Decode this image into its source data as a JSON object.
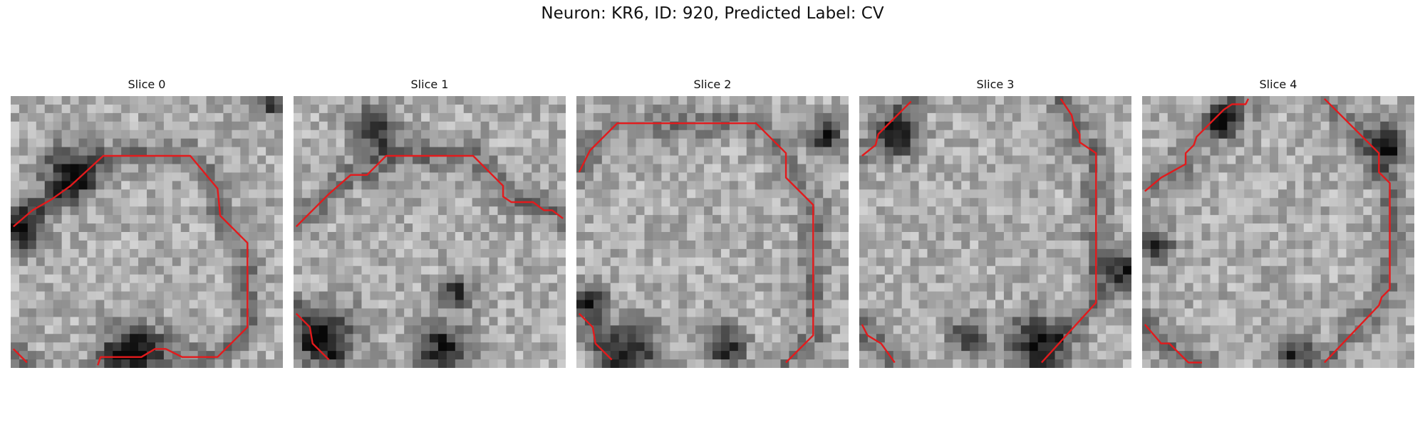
{
  "figure": {
    "title": "Neuron: KR6, ID: 920, Predicted Label: CV"
  },
  "panels": [
    {
      "title": "Slice 0",
      "seed": 11,
      "contour_color": "#e31a1c",
      "contours": [
        [
          [
            0.01,
            0.48
          ],
          [
            0.08,
            0.42
          ],
          [
            0.15,
            0.38
          ],
          [
            0.22,
            0.33
          ],
          [
            0.34,
            0.22
          ],
          [
            0.66,
            0.22
          ],
          [
            0.76,
            0.34
          ],
          [
            0.77,
            0.44
          ],
          [
            0.87,
            0.54
          ],
          [
            0.87,
            0.85
          ],
          [
            0.76,
            0.96
          ],
          [
            0.63,
            0.96
          ],
          [
            0.57,
            0.93
          ],
          [
            0.53,
            0.93
          ],
          [
            0.48,
            0.96
          ],
          [
            0.33,
            0.96
          ],
          [
            0.32,
            0.99
          ]
        ],
        [
          [
            0.01,
            0.93
          ],
          [
            0.06,
            0.98
          ]
        ]
      ],
      "dark_features": [
        [
          0.22,
          0.28,
          0.1
        ],
        [
          0.05,
          0.5,
          0.08
        ],
        [
          0.45,
          0.93,
          0.1
        ],
        [
          0.95,
          0.02,
          0.05
        ]
      ]
    },
    {
      "title": "Slice 1",
      "seed": 23,
      "contour_color": "#e31a1c",
      "contours": [
        [
          [
            0.01,
            0.48
          ],
          [
            0.13,
            0.36
          ],
          [
            0.21,
            0.29
          ],
          [
            0.27,
            0.29
          ],
          [
            0.34,
            0.22
          ],
          [
            0.66,
            0.22
          ],
          [
            0.77,
            0.33
          ],
          [
            0.77,
            0.37
          ],
          [
            0.8,
            0.39
          ],
          [
            0.88,
            0.39
          ],
          [
            0.92,
            0.42
          ],
          [
            0.95,
            0.42
          ],
          [
            0.99,
            0.45
          ]
        ],
        [
          [
            0.01,
            0.8
          ],
          [
            0.06,
            0.85
          ],
          [
            0.07,
            0.91
          ],
          [
            0.13,
            0.97
          ]
        ]
      ],
      "dark_features": [
        [
          0.12,
          0.88,
          0.11
        ],
        [
          0.55,
          0.93,
          0.1
        ],
        [
          0.3,
          0.12,
          0.08
        ],
        [
          0.6,
          0.72,
          0.05
        ]
      ]
    },
    {
      "title": "Slice 2",
      "seed": 37,
      "contour_color": "#e31a1c",
      "contours": [
        [
          [
            0.01,
            0.28
          ],
          [
            0.05,
            0.2
          ],
          [
            0.15,
            0.1
          ],
          [
            0.66,
            0.1
          ],
          [
            0.77,
            0.21
          ],
          [
            0.77,
            0.3
          ],
          [
            0.87,
            0.4
          ],
          [
            0.87,
            0.88
          ],
          [
            0.77,
            0.98
          ]
        ],
        [
          [
            0.01,
            0.8
          ],
          [
            0.06,
            0.85
          ],
          [
            0.07,
            0.91
          ],
          [
            0.13,
            0.97
          ]
        ]
      ],
      "dark_features": [
        [
          0.2,
          0.93,
          0.1
        ],
        [
          0.05,
          0.75,
          0.06
        ],
        [
          0.55,
          0.92,
          0.07
        ],
        [
          0.92,
          0.15,
          0.06
        ]
      ]
    },
    {
      "title": "Slice 3",
      "seed": 53,
      "contour_color": "#e31a1c",
      "contours": [
        [
          [
            0.74,
            0.01
          ],
          [
            0.78,
            0.07
          ],
          [
            0.79,
            0.11
          ],
          [
            0.81,
            0.14
          ],
          [
            0.81,
            0.17
          ],
          [
            0.87,
            0.21
          ],
          [
            0.87,
            0.76
          ],
          [
            0.67,
            0.98
          ]
        ],
        [
          [
            0.01,
            0.22
          ],
          [
            0.06,
            0.18
          ],
          [
            0.07,
            0.14
          ],
          [
            0.19,
            0.02
          ]
        ],
        [
          [
            0.01,
            0.84
          ],
          [
            0.03,
            0.88
          ],
          [
            0.08,
            0.91
          ],
          [
            0.13,
            0.98
          ]
        ]
      ],
      "dark_features": [
        [
          0.65,
          0.9,
          0.1
        ],
        [
          0.97,
          0.65,
          0.07
        ],
        [
          0.15,
          0.15,
          0.07
        ],
        [
          0.4,
          0.88,
          0.06
        ]
      ]
    },
    {
      "title": "Slice 4",
      "seed": 71,
      "contour_color": "#e31a1c",
      "contours": [
        [
          [
            0.67,
            0.01
          ],
          [
            0.87,
            0.21
          ],
          [
            0.87,
            0.28
          ],
          [
            0.91,
            0.32
          ],
          [
            0.91,
            0.71
          ],
          [
            0.88,
            0.74
          ],
          [
            0.87,
            0.77
          ],
          [
            0.67,
            0.98
          ]
        ],
        [
          [
            0.01,
            0.35
          ],
          [
            0.07,
            0.3
          ],
          [
            0.16,
            0.25
          ],
          [
            0.16,
            0.21
          ],
          [
            0.19,
            0.18
          ],
          [
            0.2,
            0.15
          ],
          [
            0.25,
            0.1
          ],
          [
            0.3,
            0.05
          ],
          [
            0.33,
            0.03
          ],
          [
            0.38,
            0.03
          ],
          [
            0.39,
            0.01
          ]
        ],
        [
          [
            0.01,
            0.84
          ],
          [
            0.07,
            0.91
          ],
          [
            0.1,
            0.91
          ],
          [
            0.17,
            0.98
          ],
          [
            0.22,
            0.98
          ]
        ]
      ],
      "dark_features": [
        [
          0.9,
          0.18,
          0.07
        ],
        [
          0.55,
          0.95,
          0.07
        ],
        [
          0.3,
          0.1,
          0.06
        ],
        [
          0.05,
          0.55,
          0.06
        ]
      ]
    }
  ]
}
